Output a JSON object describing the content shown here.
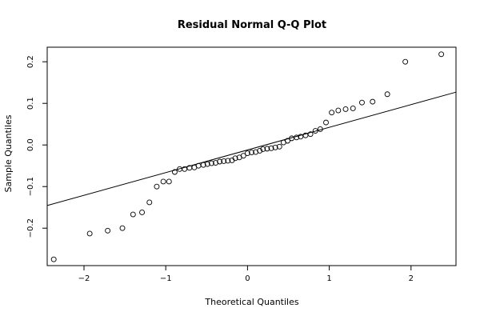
{
  "chart_data": {
    "type": "scatter",
    "title": "Residual Normal Q-Q Plot",
    "xlabel": "Theoretical Quantiles",
    "ylabel": "Sample Quantiles",
    "xlim": [
      -2.45,
      2.55
    ],
    "ylim": [
      -0.29,
      0.235
    ],
    "x_ticks": [
      -2,
      -1,
      0,
      1,
      2
    ],
    "x_tick_labels": [
      "−2",
      "−1",
      "0",
      "1",
      "2"
    ],
    "y_ticks": [
      -0.2,
      -0.1,
      0.0,
      0.1,
      0.2
    ],
    "y_tick_labels": [
      "−0.2",
      "−0.1",
      "0.0",
      "0.1",
      "0.2"
    ],
    "grid": false,
    "points": [
      {
        "x": -2.37,
        "y": -0.275
      },
      {
        "x": -1.93,
        "y": -0.213
      },
      {
        "x": -1.71,
        "y": -0.206
      },
      {
        "x": -1.53,
        "y": -0.2
      },
      {
        "x": -1.4,
        "y": -0.167
      },
      {
        "x": -1.29,
        "y": -0.162
      },
      {
        "x": -1.2,
        "y": -0.138
      },
      {
        "x": -1.11,
        "y": -0.1
      },
      {
        "x": -1.03,
        "y": -0.088
      },
      {
        "x": -0.96,
        "y": -0.088
      },
      {
        "x": -0.89,
        "y": -0.065
      },
      {
        "x": -0.83,
        "y": -0.058
      },
      {
        "x": -0.77,
        "y": -0.058
      },
      {
        "x": -0.71,
        "y": -0.055
      },
      {
        "x": -0.65,
        "y": -0.054
      },
      {
        "x": -0.6,
        "y": -0.05
      },
      {
        "x": -0.54,
        "y": -0.048
      },
      {
        "x": -0.49,
        "y": -0.046
      },
      {
        "x": -0.44,
        "y": -0.044
      },
      {
        "x": -0.39,
        "y": -0.043
      },
      {
        "x": -0.34,
        "y": -0.04
      },
      {
        "x": -0.29,
        "y": -0.039
      },
      {
        "x": -0.24,
        "y": -0.038
      },
      {
        "x": -0.19,
        "y": -0.037
      },
      {
        "x": -0.15,
        "y": -0.032
      },
      {
        "x": -0.1,
        "y": -0.03
      },
      {
        "x": -0.05,
        "y": -0.026
      },
      {
        "x": 0.0,
        "y": -0.02
      },
      {
        "x": 0.05,
        "y": -0.018
      },
      {
        "x": 0.1,
        "y": -0.017
      },
      {
        "x": 0.15,
        "y": -0.014
      },
      {
        "x": 0.19,
        "y": -0.01
      },
      {
        "x": 0.24,
        "y": -0.009
      },
      {
        "x": 0.29,
        "y": -0.008
      },
      {
        "x": 0.34,
        "y": -0.006
      },
      {
        "x": 0.39,
        "y": -0.004
      },
      {
        "x": 0.44,
        "y": 0.006
      },
      {
        "x": 0.49,
        "y": 0.01
      },
      {
        "x": 0.54,
        "y": 0.016
      },
      {
        "x": 0.6,
        "y": 0.018
      },
      {
        "x": 0.65,
        "y": 0.02
      },
      {
        "x": 0.71,
        "y": 0.023
      },
      {
        "x": 0.77,
        "y": 0.026
      },
      {
        "x": 0.83,
        "y": 0.034
      },
      {
        "x": 0.89,
        "y": 0.038
      },
      {
        "x": 0.96,
        "y": 0.054
      },
      {
        "x": 1.03,
        "y": 0.078
      },
      {
        "x": 1.11,
        "y": 0.083
      },
      {
        "x": 1.2,
        "y": 0.086
      },
      {
        "x": 1.29,
        "y": 0.088
      },
      {
        "x": 1.4,
        "y": 0.102
      },
      {
        "x": 1.53,
        "y": 0.104
      },
      {
        "x": 1.71,
        "y": 0.122
      },
      {
        "x": 1.93,
        "y": 0.2
      },
      {
        "x": 2.37,
        "y": 0.218
      }
    ],
    "reference_line": {
      "intercept": -0.012,
      "slope": 0.0545
    }
  }
}
